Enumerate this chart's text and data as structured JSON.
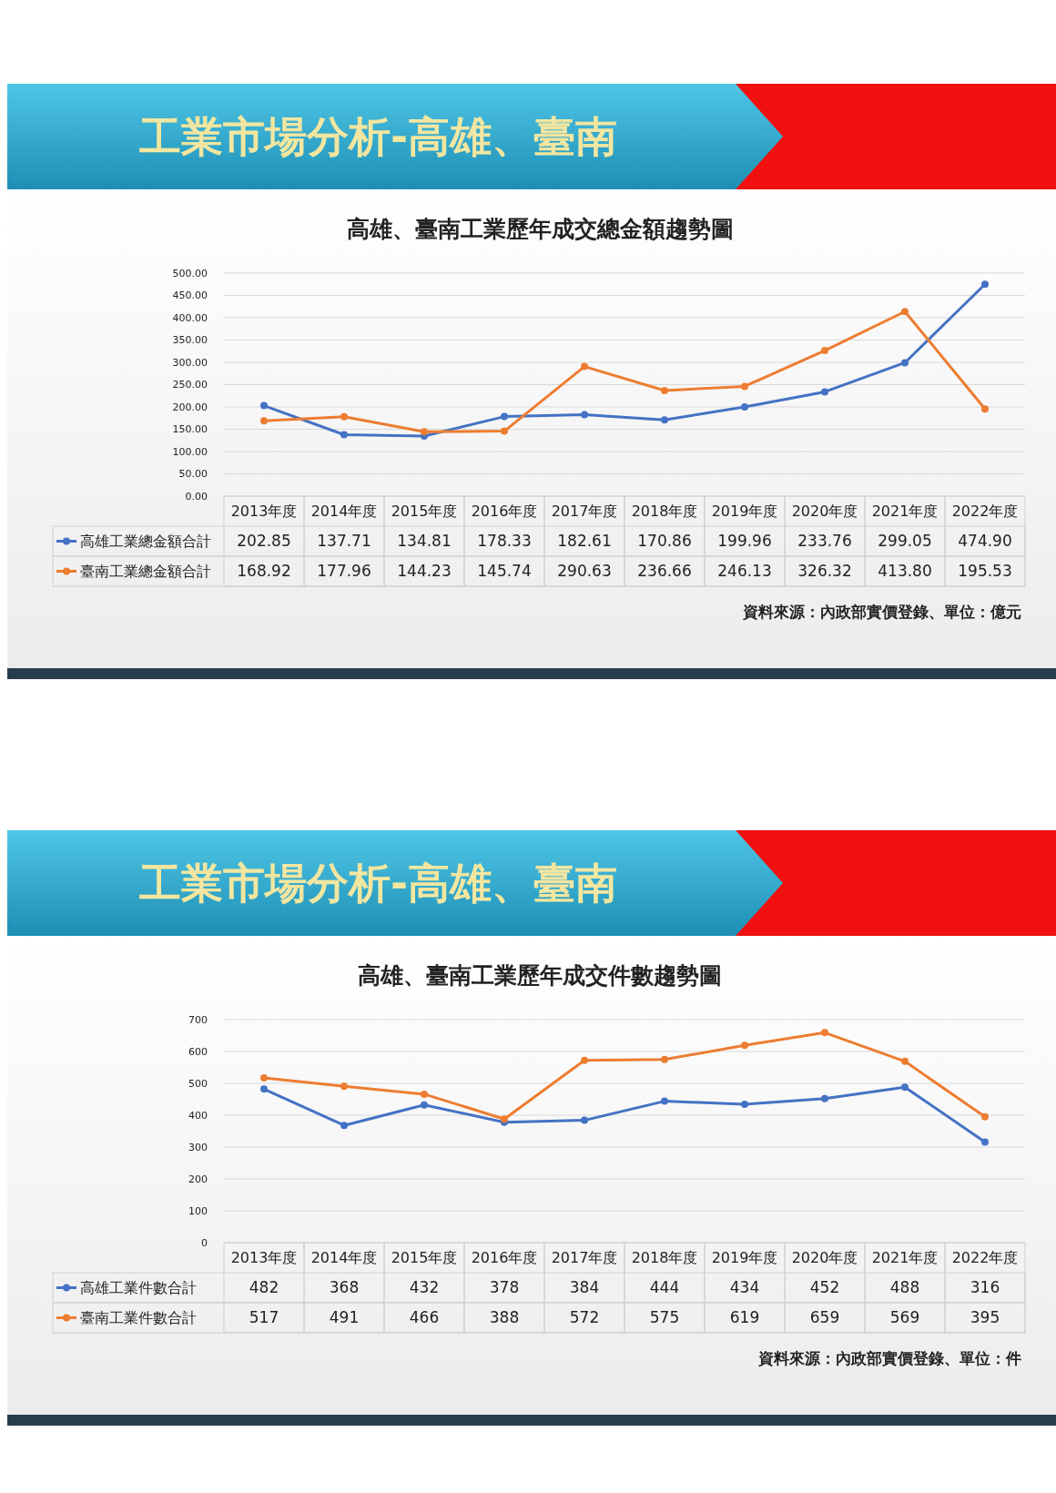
{
  "chart_data": [
    {
      "type": "line",
      "title": "高雄、臺南工業歷年成交總金額趨勢圖",
      "annotations": [
        "工業市場分析-高雄、臺南",
        "資料來源：內政部實價登錄、單位：億元"
      ],
      "categories": [
        "2013年度",
        "2014年度",
        "2015年度",
        "2016年度",
        "2017年度",
        "2018年度",
        "2019年度",
        "2020年度",
        "2021年度",
        "2022年度"
      ],
      "series": [
        {
          "name": "高雄工業總金額合計",
          "color": "#4472c4",
          "values": [
            202.85,
            137.71,
            134.81,
            178.33,
            182.61,
            170.86,
            199.96,
            233.76,
            299.05,
            474.9
          ],
          "value_labels": [
            "202.85",
            "137.71",
            "134.81",
            "178.33",
            "182.61",
            "170.86",
            "199.96",
            "233.76",
            "299.05",
            "474.90"
          ]
        },
        {
          "name": "臺南工業總金額合計",
          "color": "#ed7d31",
          "values": [
            168.92,
            177.96,
            144.23,
            145.74,
            290.63,
            236.66,
            246.13,
            326.32,
            413.8,
            195.53
          ],
          "value_labels": [
            "168.92",
            "177.96",
            "144.23",
            "145.74",
            "290.63",
            "236.66",
            "246.13",
            "326.32",
            "413.80",
            "195.53"
          ]
        }
      ],
      "ylim": [
        0,
        500
      ],
      "yticks": [
        {
          "value": 0,
          "label": "0.00"
        },
        {
          "value": 50,
          "label": "50.00"
        },
        {
          "value": 100,
          "label": "100.00"
        },
        {
          "value": 150,
          "label": "150.00"
        },
        {
          "value": 200,
          "label": "200.00"
        },
        {
          "value": 250,
          "label": "250.00"
        },
        {
          "value": 300,
          "label": "300.00"
        },
        {
          "value": 350,
          "label": "350.00"
        },
        {
          "value": 400,
          "label": "400.00"
        },
        {
          "value": 450,
          "label": "450.00"
        },
        {
          "value": 500,
          "label": "500.00"
        }
      ],
      "grid": "y",
      "marker": "circle",
      "legend": "bottom"
    },
    {
      "type": "line",
      "title": "高雄、臺南工業歷年成交件數趨勢圖",
      "annotations": [
        "工業市場分析-高雄、臺南",
        "資料來源：內政部實價登錄、單位：件"
      ],
      "categories": [
        "2013年度",
        "2014年度",
        "2015年度",
        "2016年度",
        "2017年度",
        "2018年度",
        "2019年度",
        "2020年度",
        "2021年度",
        "2022年度"
      ],
      "series": [
        {
          "name": "高雄工業件數合計",
          "color": "#4472c4",
          "values": [
            482,
            368,
            432,
            378,
            384,
            444,
            434,
            452,
            488,
            316
          ],
          "value_labels": [
            "482",
            "368",
            "432",
            "378",
            "384",
            "444",
            "434",
            "452",
            "488",
            "316"
          ]
        },
        {
          "name": "臺南工業件數合計",
          "color": "#ed7d31",
          "values": [
            517,
            491,
            466,
            388,
            572,
            575,
            619,
            659,
            569,
            395
          ],
          "value_labels": [
            "517",
            "491",
            "466",
            "388",
            "572",
            "575",
            "619",
            "659",
            "569",
            "395"
          ]
        }
      ],
      "ylim": [
        0,
        700
      ],
      "yticks": [
        0,
        100,
        200,
        300,
        400,
        500,
        600,
        700
      ],
      "grid": "y",
      "marker": "circle",
      "legend": "bottom"
    }
  ]
}
